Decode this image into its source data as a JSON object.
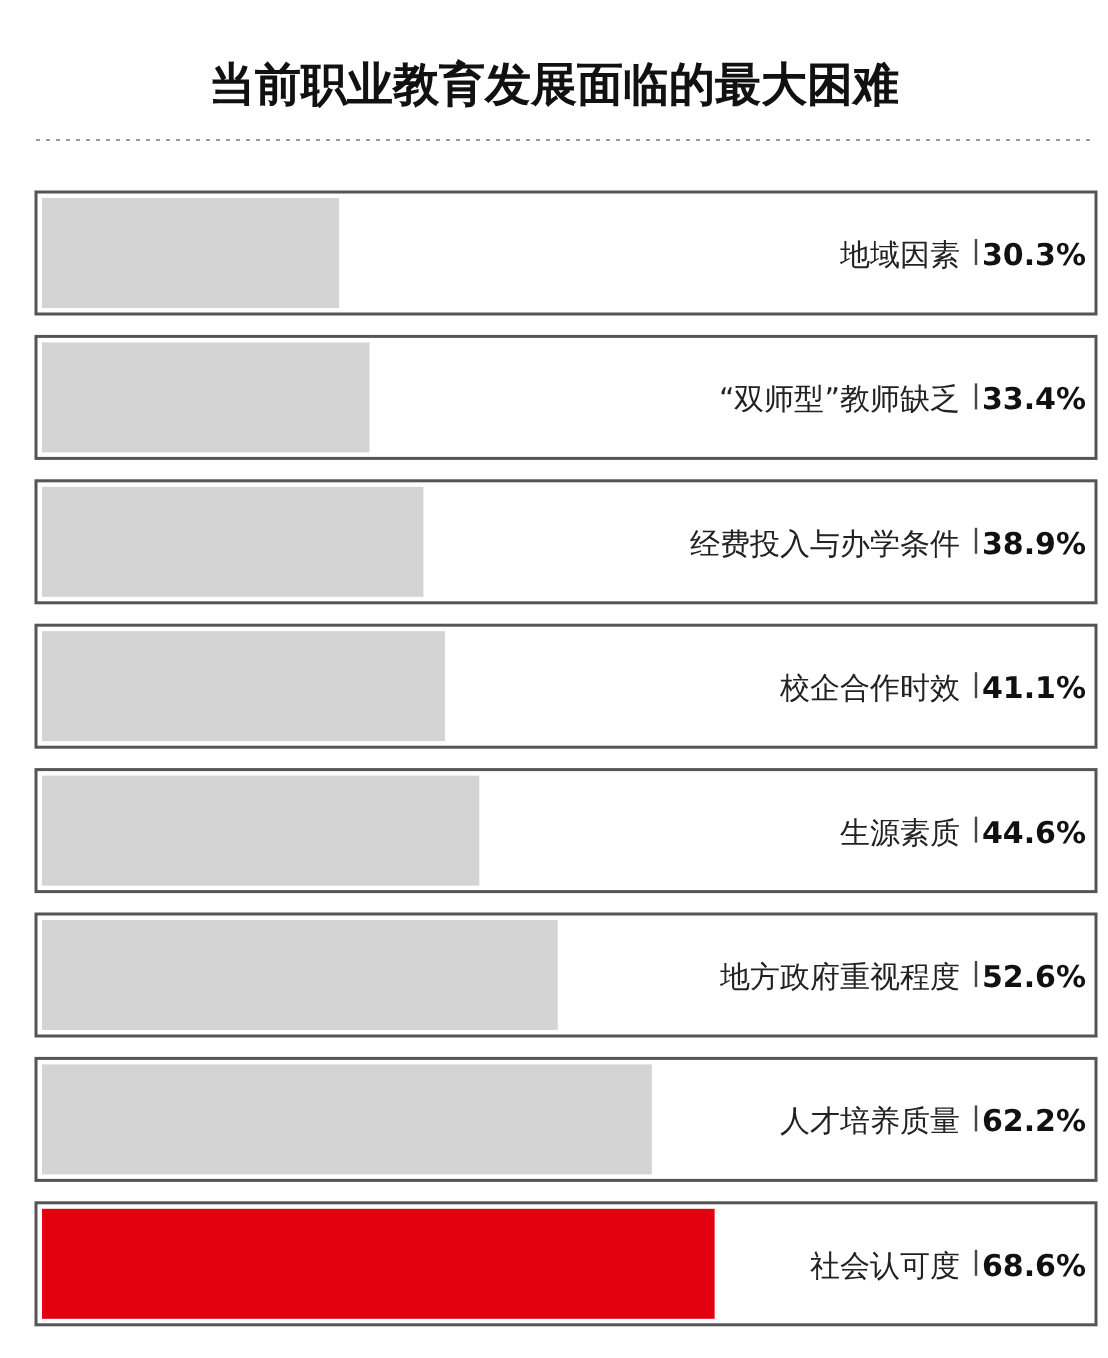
{
  "chart_data": {
    "type": "bar",
    "orientation": "horizontal",
    "title": "当前职业教育发展面临的最大困难",
    "categories": [
      "地域因素",
      "“双师型”教师缺乏",
      "经费投入与办学条件",
      "校企合作时效",
      "生源素质",
      "地方政府重视程度",
      "人才培养质量",
      "社会认可度"
    ],
    "values": [
      30.3,
      33.4,
      38.9,
      41.1,
      44.6,
      52.6,
      62.2,
      68.6
    ],
    "colors": [
      "#d4d4d4",
      "#d4d4d4",
      "#d4d4d4",
      "#d4d4d4",
      "#d4d4d4",
      "#d4d4d4",
      "#d4d4d4",
      "#e3000f"
    ],
    "value_labels": [
      "30.3%",
      "33.4%",
      "38.9%",
      "41.1%",
      "44.6%",
      "52.6%",
      "62.2%",
      "68.6%"
    ],
    "xlim": [
      0,
      108
    ]
  }
}
